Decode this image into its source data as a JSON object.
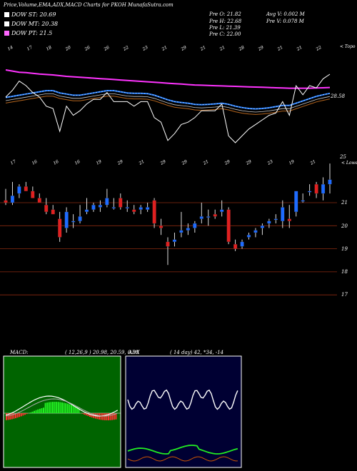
{
  "header": {
    "title": "Price,Volume,EMA,ADX,MACD Charts for PKOH MunafaSutra.com",
    "dow": [
      {
        "label": "DOW ST: 20.69",
        "color": "#ffffff"
      },
      {
        "label": "DOW MT: 20.38",
        "color": "#ffffff"
      },
      {
        "label": "DOW PT: 21.5",
        "color": "#ff66ff"
      }
    ],
    "stats": [
      "Pre  O: 21.82",
      "Pre  H: 22.68",
      "Pre  L: 21.39",
      "Pre  C: 22.00",
      "Avg V: 0.002  M",
      "Pre  V: 0.078  M"
    ]
  },
  "ema_panel": {
    "top_dates": [
      "14",
      "17",
      "18",
      "20",
      "26",
      "26",
      "22",
      "23",
      "21",
      "29",
      "21",
      "21",
      "28",
      "29",
      "21",
      "21",
      "22"
    ],
    "bottom_dates": [
      "17",
      "16",
      "16",
      "16",
      "19",
      "29",
      "21",
      "29",
      "29",
      "21",
      "29",
      "29",
      "23",
      "19",
      "21"
    ],
    "corner_label": "< Topo",
    "price_label": "28.58"
  },
  "candle_panel": {
    "top_label": "25",
    "lower_label": "< Lower",
    "price_labels": [
      "21",
      "20",
      "19",
      "18",
      "17"
    ]
  },
  "macd": {
    "title": "MACD:",
    "params": "( 12,26,9 ) 20.98,  20.59,  0.39"
  },
  "adx": {
    "title": "ADX",
    "params": "( 14  day) 42,  *34,  -14"
  },
  "chart_data": {
    "type": "candlestick",
    "ohlc": [
      [
        21.1,
        21.6,
        20.9,
        21.0
      ],
      [
        21.0,
        21.9,
        20.9,
        21.3
      ],
      [
        21.4,
        21.8,
        21.2,
        21.7
      ],
      [
        21.7,
        21.9,
        21.5,
        21.5
      ],
      [
        21.5,
        21.7,
        21.2,
        21.2
      ],
      [
        21.2,
        21.4,
        21.0,
        21.0
      ],
      [
        20.9,
        21.2,
        20.5,
        20.6
      ],
      [
        20.7,
        20.9,
        20.5,
        20.5
      ],
      [
        20.3,
        20.6,
        19.3,
        19.5
      ],
      [
        19.9,
        20.8,
        19.7,
        20.6
      ],
      [
        20.2,
        20.5,
        19.9,
        20.2
      ],
      [
        20.2,
        20.9,
        20.1,
        20.4
      ],
      [
        20.6,
        21.2,
        20.5,
        20.7
      ],
      [
        20.7,
        21.0,
        20.6,
        20.9
      ],
      [
        20.8,
        21.1,
        20.6,
        20.9
      ],
      [
        20.9,
        21.6,
        20.8,
        21.2
      ],
      [
        20.8,
        21.2,
        20.7,
        20.8
      ],
      [
        21.2,
        21.4,
        20.7,
        20.8
      ],
      [
        20.8,
        21.1,
        20.6,
        20.8
      ],
      [
        20.7,
        20.9,
        20.5,
        20.6
      ],
      [
        20.7,
        20.9,
        20.5,
        20.8
      ],
      [
        20.7,
        21.0,
        20.6,
        20.8
      ],
      [
        21.1,
        21.2,
        19.9,
        20.1
      ],
      [
        20.0,
        20.3,
        19.6,
        19.9
      ],
      [
        19.3,
        19.5,
        18.3,
        19.1
      ],
      [
        19.3,
        19.7,
        19.1,
        19.4
      ],
      [
        19.7,
        20.6,
        19.5,
        19.8
      ],
      [
        19.8,
        20.1,
        19.6,
        19.9
      ],
      [
        19.9,
        20.2,
        19.7,
        20.1
      ],
      [
        20.3,
        21.0,
        20.1,
        20.4
      ],
      [
        20.4,
        20.7,
        20.0,
        20.4
      ],
      [
        20.5,
        20.7,
        20.3,
        20.4
      ],
      [
        20.6,
        21.1,
        20.4,
        20.7
      ],
      [
        20.7,
        20.8,
        19.2,
        19.3
      ],
      [
        19.2,
        19.4,
        18.9,
        19.0
      ],
      [
        19.1,
        19.4,
        19.0,
        19.3
      ],
      [
        19.5,
        19.7,
        19.4,
        19.6
      ],
      [
        19.7,
        19.9,
        19.5,
        19.8
      ],
      [
        19.9,
        20.1,
        19.6,
        20.0
      ],
      [
        20.1,
        20.3,
        19.9,
        20.2
      ],
      [
        20.3,
        20.5,
        20.1,
        20.3
      ],
      [
        20.2,
        21.1,
        19.9,
        20.8
      ],
      [
        20.3,
        20.9,
        19.9,
        20.2
      ],
      [
        20.6,
        21.5,
        20.4,
        21.5
      ],
      [
        21.1,
        21.4,
        21.0,
        21.1
      ],
      [
        21.5,
        21.8,
        21.3,
        21.5
      ],
      [
        21.8,
        21.9,
        21.2,
        21.4
      ],
      [
        21.4,
        22.1,
        21.1,
        21.8
      ],
      [
        21.8,
        22.7,
        21.4,
        22.0
      ]
    ],
    "ema_short": [
      20.8,
      20.85,
      20.9,
      20.95,
      21.0,
      21.05,
      21.1,
      21.1,
      21.0,
      20.95,
      20.9,
      20.9,
      20.95,
      21.0,
      21.05,
      21.1,
      21.1,
      21.05,
      21.0,
      20.98,
      20.98,
      20.97,
      20.9,
      20.8,
      20.7,
      20.62,
      20.58,
      20.55,
      20.5,
      20.48,
      20.5,
      20.52,
      20.55,
      20.5,
      20.42,
      20.36,
      20.32,
      20.3,
      20.32,
      20.35,
      20.4,
      20.45,
      20.45,
      20.55,
      20.65,
      20.75,
      20.85,
      20.92,
      20.98
    ],
    "ema_long": [
      22.5,
      22.45,
      22.4,
      22.38,
      22.35,
      22.32,
      22.3,
      22.28,
      22.25,
      22.22,
      22.2,
      22.18,
      22.16,
      22.14,
      22.12,
      22.1,
      22.08,
      22.06,
      22.04,
      22.02,
      22.0,
      21.98,
      21.96,
      21.94,
      21.92,
      21.9,
      21.88,
      21.86,
      21.84,
      21.83,
      21.82,
      21.81,
      21.8,
      21.79,
      21.78,
      21.77,
      21.76,
      21.75,
      21.74,
      21.73,
      21.72,
      21.71,
      21.7,
      21.7,
      21.7,
      21.7,
      21.71,
      21.72,
      21.73
    ],
    "price_axis_ticks": [
      21,
      20,
      19,
      18,
      17
    ]
  }
}
